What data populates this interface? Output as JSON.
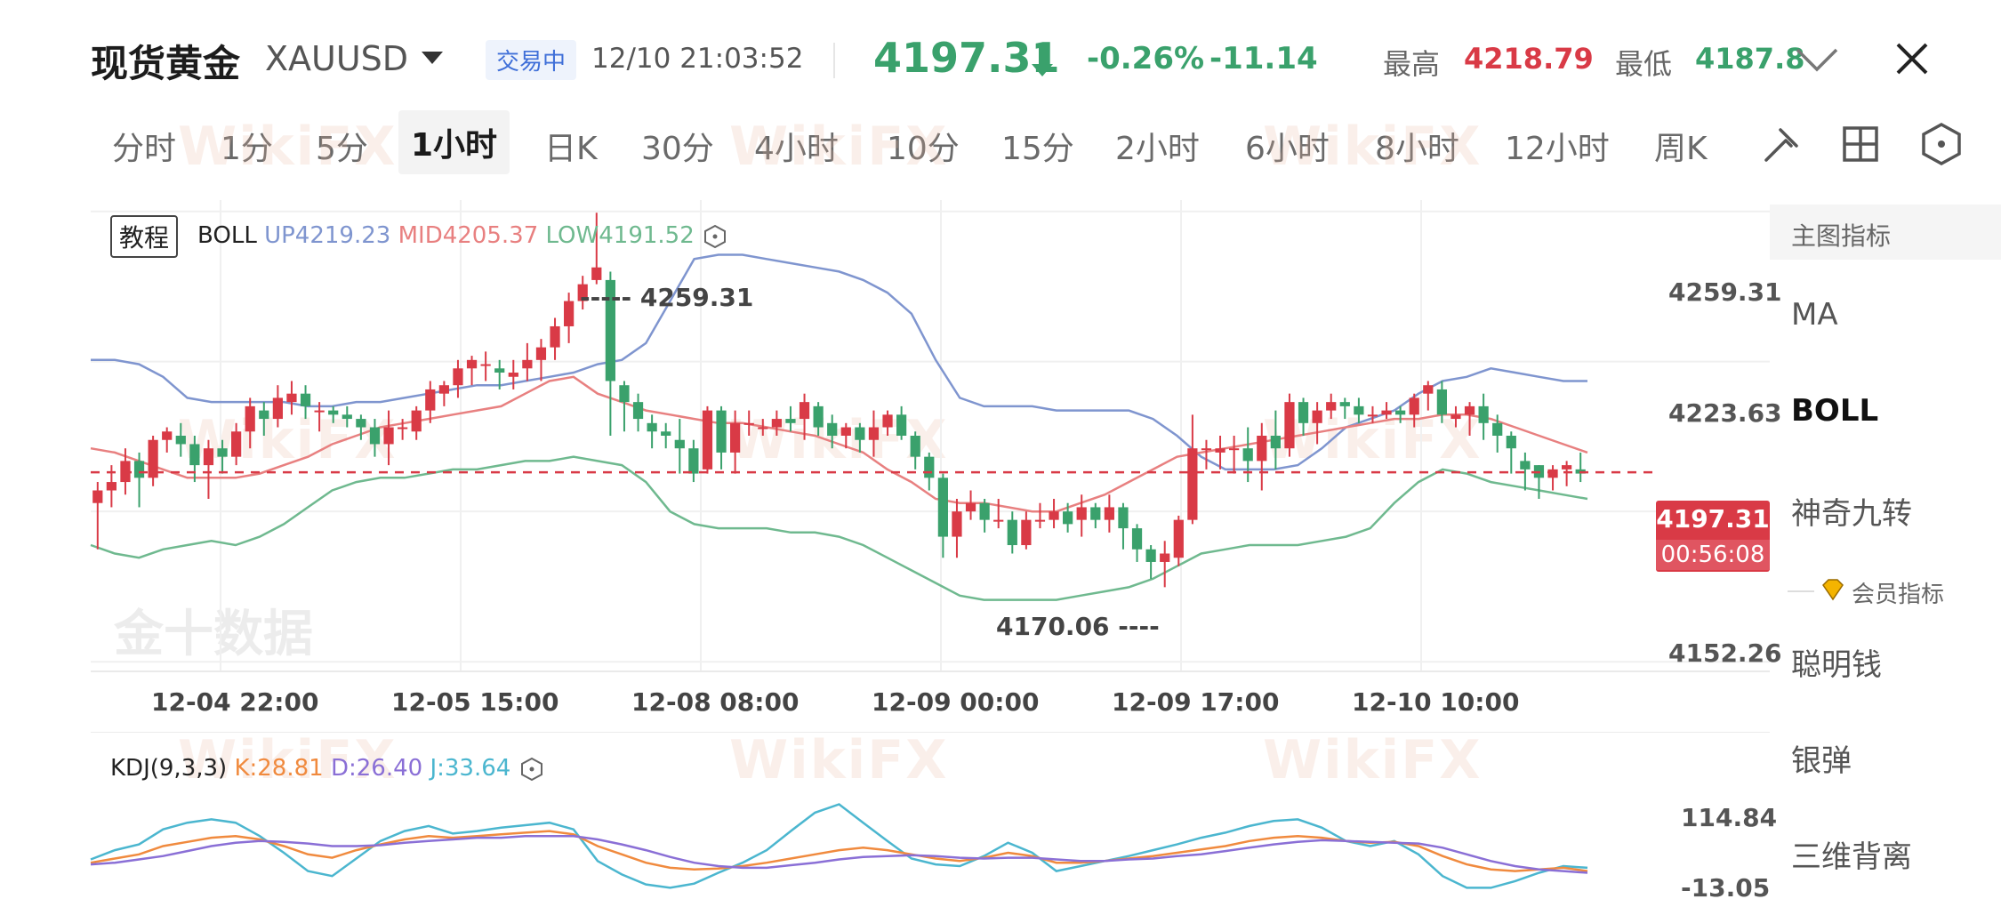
{
  "header": {
    "title": "现货黄金",
    "symbol": "XAUUSD",
    "status": "交易中",
    "datetime": "12/10 21:03:52",
    "price": "4197.31",
    "change_pct": "-0.26%",
    "change": "-11.14",
    "high_label": "最高",
    "high": "4218.79",
    "low_label": "最低",
    "low": "4187.8"
  },
  "tabs": [
    "分时",
    "1分",
    "5分",
    "1小时",
    "日K",
    "30分",
    "4小时",
    "10分",
    "15分",
    "2小时",
    "6小时",
    "8小时",
    "12小时",
    "周K"
  ],
  "active_tab": "1小时",
  "toolbar_icons": [
    "draw-icon",
    "grid-layout-icon",
    "settings-hex-icon"
  ],
  "legend": {
    "tutorial": "教程",
    "boll_name": "BOLL",
    "boll_up": "UP4219.23",
    "boll_mid": "MID4205.37",
    "boll_low": "LOW4191.52",
    "kdj_name": "KDJ(9,3,3)",
    "kdj_k": "K:28.81",
    "kdj_d": "D:26.40",
    "kdj_j": "J:33.64"
  },
  "axis": {
    "y_main": [
      "4259.31",
      "4223.63",
      "4152.26"
    ],
    "y_kdj": [
      "114.84",
      "-13.05"
    ],
    "x": [
      "12-04 22:00",
      "12-05 15:00",
      "12-08 08:00",
      "12-09 00:00",
      "12-09 17:00",
      "12-10 10:00"
    ]
  },
  "markers": {
    "max": "4259.31",
    "min": "4170.06"
  },
  "price_tag": {
    "price": "4197.31",
    "countdown": "00:56:08"
  },
  "side": {
    "header": "主图指标",
    "items": [
      "MA",
      "BOLL",
      "神奇九转"
    ],
    "active": "BOLL",
    "vip_label": "会员指标",
    "vip_items": [
      "聪明钱",
      "银弹",
      "三维背离"
    ]
  },
  "watermarks": {
    "brand": "WikiFX",
    "source": "金十数据"
  },
  "colors": {
    "up": "#d93a46",
    "down": "#3aa16c",
    "boll_up": "#7f95cf",
    "boll_mid": "#e88080",
    "boll_low": "#6fb98f",
    "kdj_k": "#f08a3e",
    "kdj_d": "#8a6fd6",
    "kdj_j": "#4bb6cf"
  },
  "chart_data": {
    "type": "candlestick",
    "ylim": [
      4150,
      4262
    ],
    "candles": [
      [
        4190,
        4193,
        4179,
        4195
      ],
      [
        4193,
        4195,
        4189,
        4199
      ],
      [
        4195,
        4200,
        4192,
        4203
      ],
      [
        4200,
        4196,
        4189,
        4202
      ],
      [
        4196,
        4205,
        4194,
        4206
      ],
      [
        4205,
        4207,
        4202,
        4208
      ],
      [
        4206,
        4204,
        4201,
        4209
      ],
      [
        4204,
        4199,
        4195,
        4206
      ],
      [
        4199,
        4203,
        4191,
        4205
      ],
      [
        4203,
        4201,
        4197,
        4205
      ],
      [
        4201,
        4207,
        4199,
        4209
      ],
      [
        4207,
        4213,
        4203,
        4215
      ],
      [
        4212,
        4210,
        4206,
        4214
      ],
      [
        4210,
        4215,
        4208,
        4218
      ],
      [
        4214,
        4216,
        4211,
        4219
      ],
      [
        4216,
        4213,
        4210,
        4218
      ],
      [
        4212,
        4212,
        4207,
        4214
      ],
      [
        4212,
        4211,
        4209,
        4213
      ],
      [
        4211,
        4210,
        4208,
        4213
      ],
      [
        4210,
        4208,
        4205,
        4211
      ],
      [
        4208,
        4204,
        4201,
        4210
      ],
      [
        4204,
        4208,
        4199,
        4212
      ],
      [
        4208,
        4208,
        4205,
        4210
      ],
      [
        4207,
        4212,
        4205,
        4213
      ],
      [
        4212,
        4217,
        4209,
        4219
      ],
      [
        4216,
        4218,
        4213,
        4219
      ],
      [
        4218,
        4222,
        4215,
        4224
      ],
      [
        4222,
        4224,
        4218,
        4225
      ],
      [
        4223,
        4223,
        4219,
        4226
      ],
      [
        4222,
        4221,
        4217,
        4224
      ],
      [
        4220,
        4221,
        4217,
        4224
      ],
      [
        4222,
        4224,
        4219,
        4228
      ],
      [
        4224,
        4227,
        4219,
        4229
      ],
      [
        4227,
        4232,
        4224,
        4234
      ],
      [
        4232,
        4238,
        4228,
        4240
      ],
      [
        4238,
        4242,
        4236,
        4244
      ],
      [
        4243,
        4246,
        4242,
        4259
      ],
      [
        4243,
        4219,
        4206,
        4245
      ],
      [
        4218,
        4214,
        4207,
        4219
      ],
      [
        4214,
        4210,
        4207,
        4216
      ],
      [
        4209,
        4207,
        4203,
        4211
      ],
      [
        4207,
        4206,
        4203,
        4209
      ],
      [
        4205,
        4203,
        4197,
        4210
      ],
      [
        4203,
        4197,
        4195,
        4205
      ],
      [
        4198,
        4212,
        4197,
        4213
      ],
      [
        4212,
        4202,
        4198,
        4213
      ],
      [
        4202,
        4209,
        4197,
        4212
      ],
      [
        4209,
        4209,
        4206,
        4212
      ],
      [
        4208,
        4208,
        4206,
        4210
      ],
      [
        4208,
        4210,
        4206,
        4212
      ],
      [
        4210,
        4209,
        4207,
        4213
      ],
      [
        4210,
        4214,
        4205,
        4216
      ],
      [
        4213,
        4208,
        4206,
        4214
      ],
      [
        4209,
        4206,
        4203,
        4211
      ],
      [
        4206,
        4208,
        4203,
        4209
      ],
      [
        4208,
        4205,
        4202,
        4209
      ],
      [
        4205,
        4208,
        4201,
        4212
      ],
      [
        4208,
        4211,
        4206,
        4212
      ],
      [
        4211,
        4206,
        4205,
        4213
      ],
      [
        4206,
        4201,
        4198,
        4207
      ],
      [
        4201,
        4196,
        4193,
        4202
      ],
      [
        4196,
        4182,
        4177,
        4197
      ],
      [
        4182,
        4188,
        4177,
        4191
      ],
      [
        4188,
        4190,
        4186,
        4193
      ],
      [
        4190,
        4186,
        4183,
        4191
      ],
      [
        4186,
        4186,
        4184,
        4191
      ],
      [
        4186,
        4180,
        4178,
        4188
      ],
      [
        4180,
        4186,
        4179,
        4188
      ],
      [
        4186,
        4186,
        4184,
        4190
      ],
      [
        4186,
        4188,
        4184,
        4191
      ],
      [
        4188,
        4185,
        4183,
        4190
      ],
      [
        4186,
        4189,
        4182,
        4192
      ],
      [
        4189,
        4186,
        4184,
        4190
      ],
      [
        4186,
        4189,
        4183,
        4192
      ],
      [
        4189,
        4184,
        4179,
        4190
      ],
      [
        4184,
        4179,
        4176,
        4185
      ],
      [
        4179,
        4176,
        4172,
        4180
      ],
      [
        4176,
        4178,
        4170,
        4181
      ],
      [
        4177,
        4186,
        4175,
        4187
      ],
      [
        4186,
        4203,
        4185,
        4211
      ],
      [
        4203,
        4203,
        4198,
        4205
      ],
      [
        4202,
        4203,
        4198,
        4206
      ],
      [
        4203,
        4203,
        4197,
        4206
      ],
      [
        4203,
        4200,
        4195,
        4208
      ],
      [
        4200,
        4206,
        4193,
        4209
      ],
      [
        4206,
        4203,
        4198,
        4212
      ],
      [
        4203,
        4214,
        4201,
        4216
      ],
      [
        4214,
        4209,
        4206,
        4215
      ],
      [
        4209,
        4212,
        4204,
        4214
      ],
      [
        4212,
        4214,
        4210,
        4216
      ],
      [
        4214,
        4213,
        4210,
        4215
      ],
      [
        4213,
        4211,
        4209,
        4215
      ],
      [
        4211,
        4211,
        4209,
        4213
      ],
      [
        4211,
        4212,
        4210,
        4214
      ],
      [
        4212,
        4211,
        4209,
        4213
      ],
      [
        4211,
        4215,
        4208,
        4216
      ],
      [
        4216,
        4218,
        4212,
        4219
      ],
      [
        4217,
        4211,
        4209,
        4219
      ],
      [
        4210,
        4211,
        4208,
        4213
      ],
      [
        4211,
        4213,
        4206,
        4214
      ],
      [
        4213,
        4209,
        4205,
        4216
      ],
      [
        4209,
        4206,
        4202,
        4211
      ],
      [
        4206,
        4203,
        4197,
        4207
      ],
      [
        4200,
        4198,
        4193,
        4202
      ],
      [
        4199,
        4196,
        4191,
        4199
      ],
      [
        4196,
        4198,
        4193,
        4199
      ],
      [
        4198,
        4199,
        4194,
        4200
      ],
      [
        4198,
        4197,
        4195,
        4202
      ]
    ],
    "boll_up": [
      4224,
      4224,
      4223,
      4220,
      4215,
      4214,
      4214,
      4214,
      4214,
      4213,
      4213,
      4214,
      4214,
      4215,
      4216,
      4217,
      4218,
      4218,
      4219,
      4220,
      4221,
      4223,
      4224,
      4228,
      4238,
      4248,
      4249,
      4249,
      4248,
      4247,
      4246,
      4245,
      4243,
      4240,
      4235,
      4224,
      4215,
      4213,
      4213,
      4213,
      4212,
      4212,
      4212,
      4212,
      4210,
      4206,
      4201,
      4198,
      4198,
      4198,
      4199,
      4203,
      4208,
      4210,
      4212,
      4216,
      4219,
      4220,
      4222,
      4221,
      4220,
      4219,
      4219
    ],
    "boll_mid": [
      4203,
      4202,
      4200,
      4198,
      4196,
      4196,
      4196,
      4197,
      4199,
      4201,
      4204,
      4206,
      4208,
      4209,
      4210,
      4211,
      4212,
      4213,
      4216,
      4219,
      4220,
      4216,
      4214,
      4212,
      4211,
      4210,
      4209,
      4209,
      4208,
      4207,
      4206,
      4204,
      4202,
      4198,
      4195,
      4191,
      4190,
      4190,
      4189,
      4188,
      4188,
      4190,
      4192,
      4195,
      4198,
      4201,
      4202,
      4203,
      4204,
      4205,
      4206,
      4207,
      4208,
      4209,
      4210,
      4210,
      4211,
      4211,
      4210,
      4208,
      4206,
      4204,
      4202
    ],
    "boll_low": [
      4180,
      4178,
      4177,
      4179,
      4180,
      4181,
      4180,
      4182,
      4185,
      4189,
      4193,
      4195,
      4196,
      4196,
      4197,
      4198,
      4198,
      4199,
      4200,
      4200,
      4201,
      4200,
      4199,
      4195,
      4188,
      4185,
      4184,
      4184,
      4184,
      4183,
      4183,
      4182,
      4180,
      4177,
      4174,
      4171,
      4168,
      4167,
      4167,
      4167,
      4167,
      4168,
      4169,
      4170,
      4172,
      4175,
      4178,
      4179,
      4180,
      4180,
      4180,
      4181,
      4182,
      4184,
      4190,
      4195,
      4198,
      4197,
      4195,
      4194,
      4193,
      4192,
      4191
    ],
    "kdj_k": [
      40,
      45,
      50,
      60,
      65,
      70,
      72,
      68,
      60,
      50,
      46,
      55,
      62,
      68,
      72,
      70,
      72,
      74,
      76,
      78,
      74,
      60,
      50,
      40,
      34,
      32,
      33,
      36,
      40,
      45,
      50,
      55,
      58,
      55,
      50,
      45,
      42,
      46,
      52,
      48,
      40,
      40,
      42,
      45,
      48,
      52,
      56,
      60,
      66,
      70,
      72,
      70,
      66,
      64,
      65,
      60,
      48,
      38,
      32,
      30,
      32,
      34,
      30
    ],
    "kdj_d": [
      38,
      40,
      44,
      48,
      54,
      60,
      64,
      66,
      65,
      63,
      60,
      60,
      61,
      64,
      66,
      68,
      70,
      70,
      72,
      72,
      72,
      68,
      62,
      55,
      47,
      40,
      36,
      34,
      34,
      37,
      40,
      44,
      47,
      48,
      49,
      48,
      46,
      45,
      46,
      46,
      44,
      42,
      42,
      44,
      45,
      48,
      50,
      54,
      58,
      62,
      65,
      67,
      66,
      65,
      64,
      63,
      58,
      50,
      42,
      36,
      32,
      30,
      28
    ],
    "kdj_j": [
      44,
      55,
      62,
      80,
      88,
      92,
      88,
      72,
      52,
      30,
      24,
      45,
      66,
      78,
      84,
      75,
      78,
      82,
      85,
      88,
      80,
      42,
      26,
      14,
      10,
      15,
      28,
      40,
      55,
      78,
      100,
      110,
      88,
      66,
      45,
      38,
      36,
      48,
      64,
      52,
      30,
      36,
      42,
      48,
      55,
      62,
      70,
      76,
      84,
      90,
      92,
      82,
      66,
      60,
      66,
      50,
      24,
      10,
      10,
      18,
      28,
      36,
      34
    ]
  }
}
